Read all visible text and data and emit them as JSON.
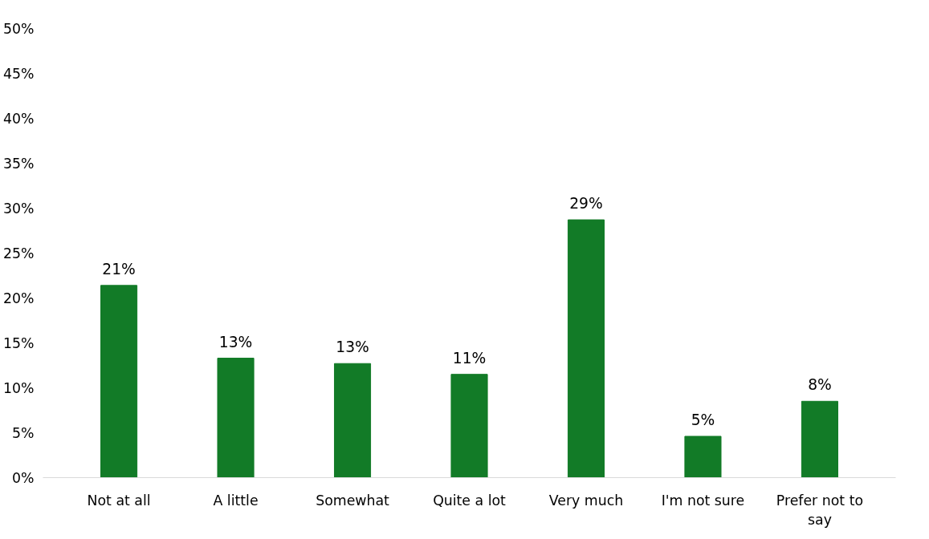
{
  "chart_data": {
    "type": "bar",
    "categories": [
      "Not at all",
      "A little",
      "Somewhat",
      "Quite a lot",
      "Very much",
      "I'm not sure",
      "Prefer not to say"
    ],
    "values": [
      21.4,
      13.3,
      12.7,
      11.5,
      28.7,
      4.6,
      8.5
    ],
    "value_labels": [
      "21%",
      "13%",
      "13%",
      "11%",
      "29%",
      "5%",
      "8%"
    ],
    "color": "#127b27",
    "ylim": [
      0,
      50
    ],
    "yticks": [
      {
        "value": 0,
        "label": "0%"
      },
      {
        "value": 5,
        "label": "5%"
      },
      {
        "value": 10,
        "label": "10%"
      },
      {
        "value": 15,
        "label": "15%"
      },
      {
        "value": 20,
        "label": "20%"
      },
      {
        "value": 25,
        "label": "25%"
      },
      {
        "value": 30,
        "label": "30%"
      },
      {
        "value": 35,
        "label": "35%"
      },
      {
        "value": 40,
        "label": "40%"
      },
      {
        "value": 45,
        "label": "45%"
      },
      {
        "value": 50,
        "label": "50%"
      }
    ],
    "grid": false
  }
}
